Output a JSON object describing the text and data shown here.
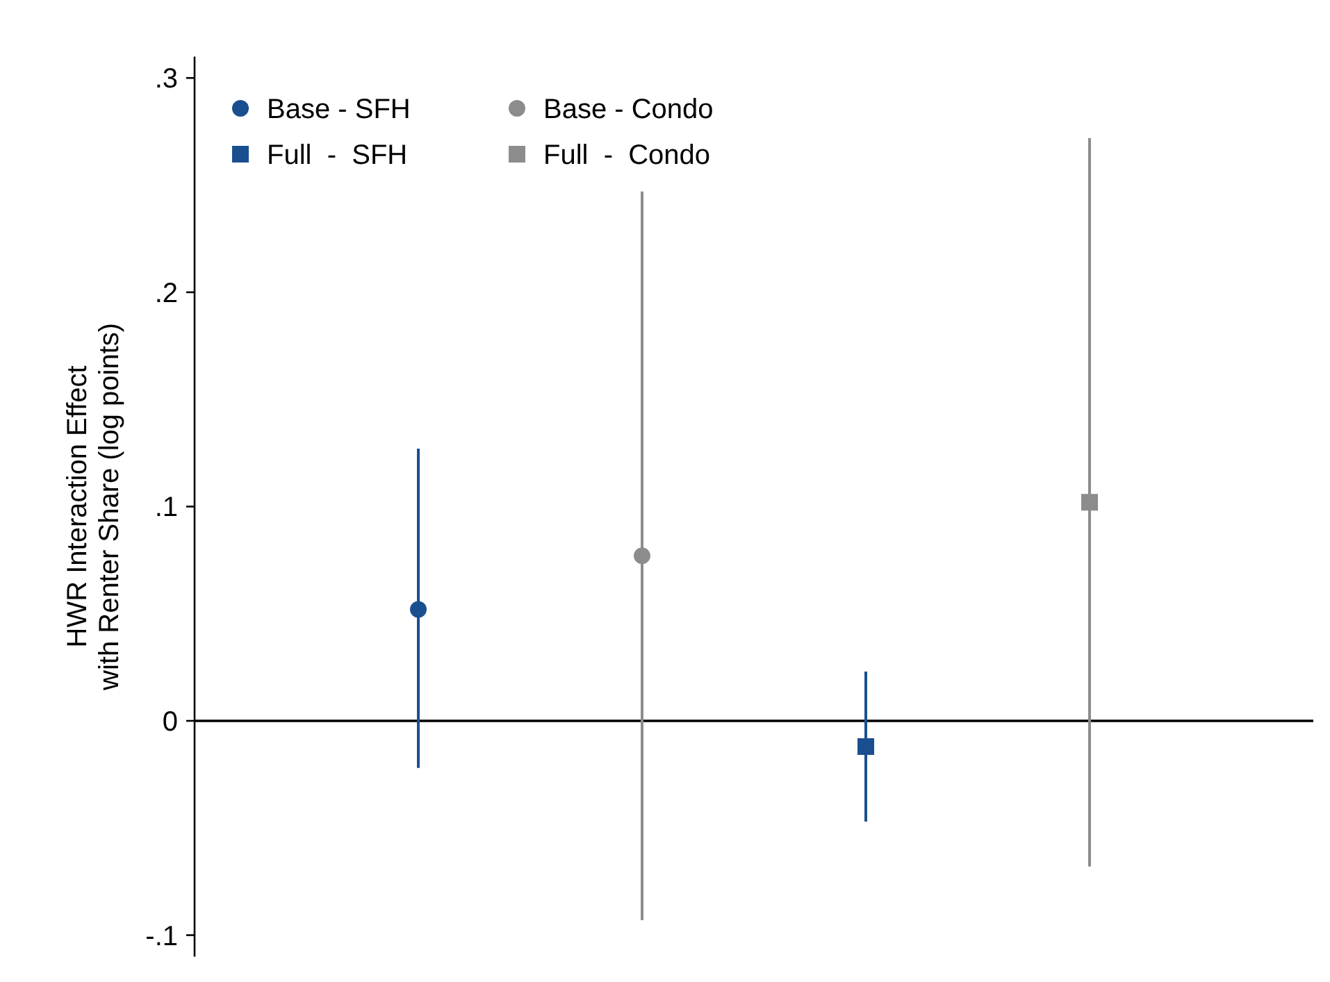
{
  "chart_data": {
    "type": "scatter",
    "ylabel": "HWR Interaction Effect\nwith Renter Share (log points)",
    "categories": [
      null,
      null,
      null,
      null
    ],
    "ylim": [
      -0.11,
      0.31
    ],
    "yticks": [
      {
        "value": 0.3,
        "label": ".3"
      },
      {
        "value": 0.2,
        "label": ".2"
      },
      {
        "value": 0.1,
        "label": ".1"
      },
      {
        "value": 0,
        "label": "0"
      },
      {
        "value": -0.1,
        "label": "-.1"
      }
    ],
    "tick_labels": "y",
    "legend": "top left",
    "ref_lines": [
      {
        "axis": "y",
        "value": 0,
        "color": "#000000"
      }
    ],
    "series": [
      {
        "name": "Base - SFH",
        "color": "#1a4f8f",
        "marker": "circle",
        "values": [
          0.052,
          null,
          null,
          null
        ],
        "errors": [
          [
            -0.022,
            0.127
          ],
          null,
          null,
          null
        ]
      },
      {
        "name": "Base - Condo",
        "color": "#8c8c8c",
        "marker": "circle",
        "values": [
          null,
          0.077,
          null,
          null
        ],
        "errors": [
          null,
          [
            -0.093,
            0.247
          ],
          null,
          null
        ]
      },
      {
        "name": "Full  -  SFH",
        "color": "#1a4f8f",
        "marker": "square",
        "values": [
          null,
          null,
          -0.012,
          null
        ],
        "errors": [
          null,
          null,
          [
            -0.047,
            0.023
          ],
          null
        ]
      },
      {
        "name": "Full  -  Condo",
        "color": "#8c8c8c",
        "marker": "square",
        "values": [
          null,
          null,
          null,
          0.102
        ],
        "errors": [
          null,
          null,
          null,
          [
            -0.068,
            0.272
          ]
        ]
      }
    ]
  }
}
